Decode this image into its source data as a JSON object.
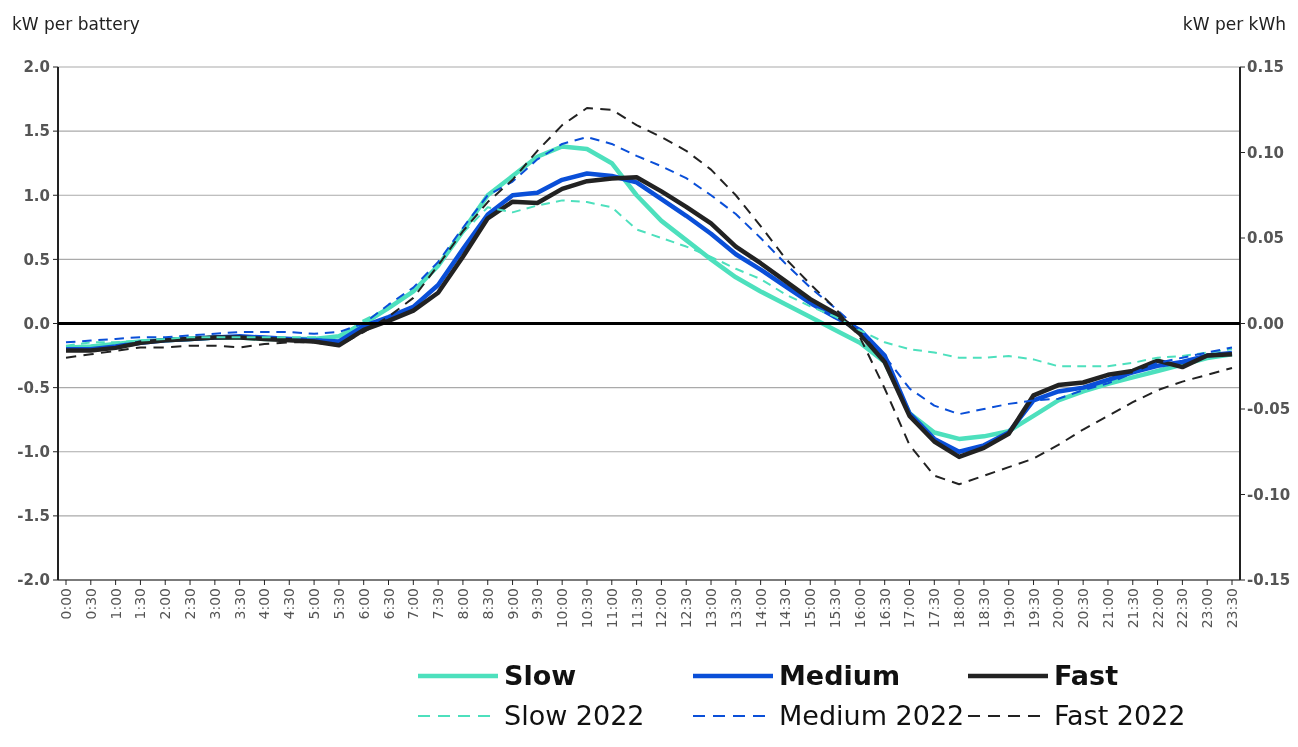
{
  "chart_data": {
    "type": "line",
    "ylabel": "kW per battery",
    "y2label": "kW per kWh",
    "categories": [
      "0:00",
      "0:30",
      "1:00",
      "1:30",
      "2:00",
      "2:30",
      "3:00",
      "3:30",
      "4:00",
      "4:30",
      "5:00",
      "5:30",
      "6:00",
      "6:30",
      "7:00",
      "7:30",
      "8:00",
      "8:30",
      "9:00",
      "9:30",
      "10:00",
      "10:30",
      "11:00",
      "11:30",
      "12:00",
      "12:30",
      "13:00",
      "13:30",
      "14:00",
      "14:30",
      "15:00",
      "15:30",
      "16:00",
      "16:30",
      "17:00",
      "17:30",
      "18:00",
      "18:30",
      "19:00",
      "19:30",
      "20:00",
      "20:30",
      "21:00",
      "21:30",
      "22:00",
      "22:30",
      "23:00",
      "23:30"
    ],
    "ylim": [
      -2,
      2
    ],
    "yticks": [
      {
        "value": -2,
        "label": "-2.0"
      },
      {
        "value": -1.5,
        "label": "-1.5"
      },
      {
        "value": -1,
        "label": "-1.0"
      },
      {
        "value": -0.5,
        "label": "-0.5"
      },
      {
        "value": 0,
        "label": "0.0"
      },
      {
        "value": 0.5,
        "label": "0.5"
      },
      {
        "value": 1,
        "label": "1.0"
      },
      {
        "value": 1.5,
        "label": "1.5"
      },
      {
        "value": 2,
        "label": "2.0"
      }
    ],
    "y2lim": [
      -0.15,
      0.15
    ],
    "y2ticks": [
      -0.15,
      {
        "value": -0.1,
        "label": "-0.10"
      },
      -0.05,
      {
        "value": 0,
        "label": "0.00"
      },
      0.05,
      {
        "value": 0.1,
        "label": "0.10"
      },
      0.15
    ],
    "grid": "y",
    "legend": "bottom",
    "marker": "none",
    "ref_lines": [
      {
        "axis": "y",
        "value": 0,
        "color": "#000000",
        "line_style": "solid"
      }
    ],
    "series": [
      {
        "name": "Slow",
        "color": "#4de0bd",
        "line_style": "solid",
        "values": [
          -0.19,
          -0.18,
          -0.16,
          -0.14,
          -0.13,
          -0.12,
          -0.11,
          -0.11,
          -0.12,
          -0.12,
          -0.12,
          -0.1,
          0.0,
          0.12,
          0.25,
          0.45,
          0.72,
          1.0,
          1.15,
          1.3,
          1.38,
          1.36,
          1.25,
          1.0,
          0.8,
          0.65,
          0.5,
          0.36,
          0.25,
          0.15,
          0.05,
          -0.05,
          -0.15,
          -0.3,
          -0.7,
          -0.85,
          -0.9,
          -0.88,
          -0.84,
          -0.72,
          -0.6,
          -0.53,
          -0.47,
          -0.42,
          -0.37,
          -0.32,
          -0.27,
          -0.24
        ]
      },
      {
        "name": "Medium",
        "color": "#0a4fd8",
        "line_style": "solid",
        "values": [
          -0.2,
          -0.2,
          -0.18,
          -0.15,
          -0.13,
          -0.12,
          -0.11,
          -0.1,
          -0.11,
          -0.12,
          -0.13,
          -0.14,
          -0.02,
          0.05,
          0.13,
          0.3,
          0.58,
          0.85,
          1.0,
          1.02,
          1.12,
          1.17,
          1.15,
          1.1,
          0.97,
          0.84,
          0.7,
          0.54,
          0.42,
          0.29,
          0.16,
          0.05,
          -0.05,
          -0.25,
          -0.7,
          -0.9,
          -1.0,
          -0.95,
          -0.85,
          -0.6,
          -0.53,
          -0.5,
          -0.44,
          -0.38,
          -0.33,
          -0.3,
          -0.25,
          -0.23
        ]
      },
      {
        "name": "Fast",
        "color": "#222222",
        "line_style": "solid",
        "values": [
          -0.21,
          -0.21,
          -0.19,
          -0.15,
          -0.13,
          -0.12,
          -0.11,
          -0.11,
          -0.12,
          -0.13,
          -0.14,
          -0.17,
          -0.05,
          0.02,
          0.1,
          0.24,
          0.52,
          0.82,
          0.95,
          0.94,
          1.05,
          1.11,
          1.13,
          1.14,
          1.03,
          0.91,
          0.78,
          0.6,
          0.47,
          0.33,
          0.19,
          0.08,
          -0.08,
          -0.3,
          -0.72,
          -0.92,
          -1.04,
          -0.97,
          -0.86,
          -0.56,
          -0.48,
          -0.46,
          -0.4,
          -0.37,
          -0.29,
          -0.34,
          -0.25,
          -0.24
        ]
      },
      {
        "name": "Slow 2022",
        "color": "#4de0bd",
        "line_style": "dashed",
        "axis": "y2",
        "values": [
          -0.013,
          -0.011,
          -0.011,
          -0.01,
          -0.009,
          -0.008,
          -0.008,
          -0.008,
          -0.008,
          -0.008,
          -0.008,
          -0.008,
          0.002,
          0.009,
          0.019,
          0.034,
          0.053,
          0.068,
          0.065,
          0.069,
          0.072,
          0.071,
          0.068,
          0.055,
          0.05,
          0.045,
          0.039,
          0.032,
          0.026,
          0.017,
          0.01,
          0.004,
          -0.004,
          -0.011,
          -0.015,
          -0.017,
          -0.02,
          -0.02,
          -0.019,
          -0.021,
          -0.025,
          -0.025,
          -0.025,
          -0.023,
          -0.02,
          -0.019,
          -0.017,
          -0.015
        ]
      },
      {
        "name": "Medium 2022",
        "color": "#0a4fd8",
        "line_style": "dashed",
        "axis": "y2",
        "values": [
          -0.011,
          -0.01,
          -0.009,
          -0.008,
          -0.008,
          -0.007,
          -0.006,
          -0.005,
          -0.005,
          -0.005,
          -0.006,
          -0.005,
          0.0,
          0.011,
          0.021,
          0.036,
          0.056,
          0.075,
          0.083,
          0.096,
          0.105,
          0.109,
          0.105,
          0.098,
          0.092,
          0.085,
          0.075,
          0.064,
          0.05,
          0.035,
          0.021,
          0.009,
          -0.004,
          -0.019,
          -0.038,
          -0.048,
          -0.053,
          -0.05,
          -0.047,
          -0.045,
          -0.044,
          -0.039,
          -0.035,
          -0.029,
          -0.023,
          -0.02,
          -0.017,
          -0.014
        ]
      },
      {
        "name": "Fast 2022",
        "color": "#222222",
        "line_style": "dashed",
        "axis": "y2",
        "values": [
          -0.02,
          -0.018,
          -0.016,
          -0.014,
          -0.014,
          -0.013,
          -0.013,
          -0.014,
          -0.012,
          -0.011,
          -0.011,
          -0.013,
          -0.005,
          0.004,
          0.015,
          0.034,
          0.054,
          0.071,
          0.084,
          0.101,
          0.116,
          0.126,
          0.125,
          0.116,
          0.109,
          0.101,
          0.09,
          0.075,
          0.057,
          0.038,
          0.023,
          0.009,
          -0.008,
          -0.038,
          -0.071,
          -0.089,
          -0.094,
          -0.089,
          -0.084,
          -0.079,
          -0.071,
          -0.062,
          -0.054,
          -0.046,
          -0.039,
          -0.034,
          -0.03,
          -0.026
        ]
      }
    ]
  }
}
